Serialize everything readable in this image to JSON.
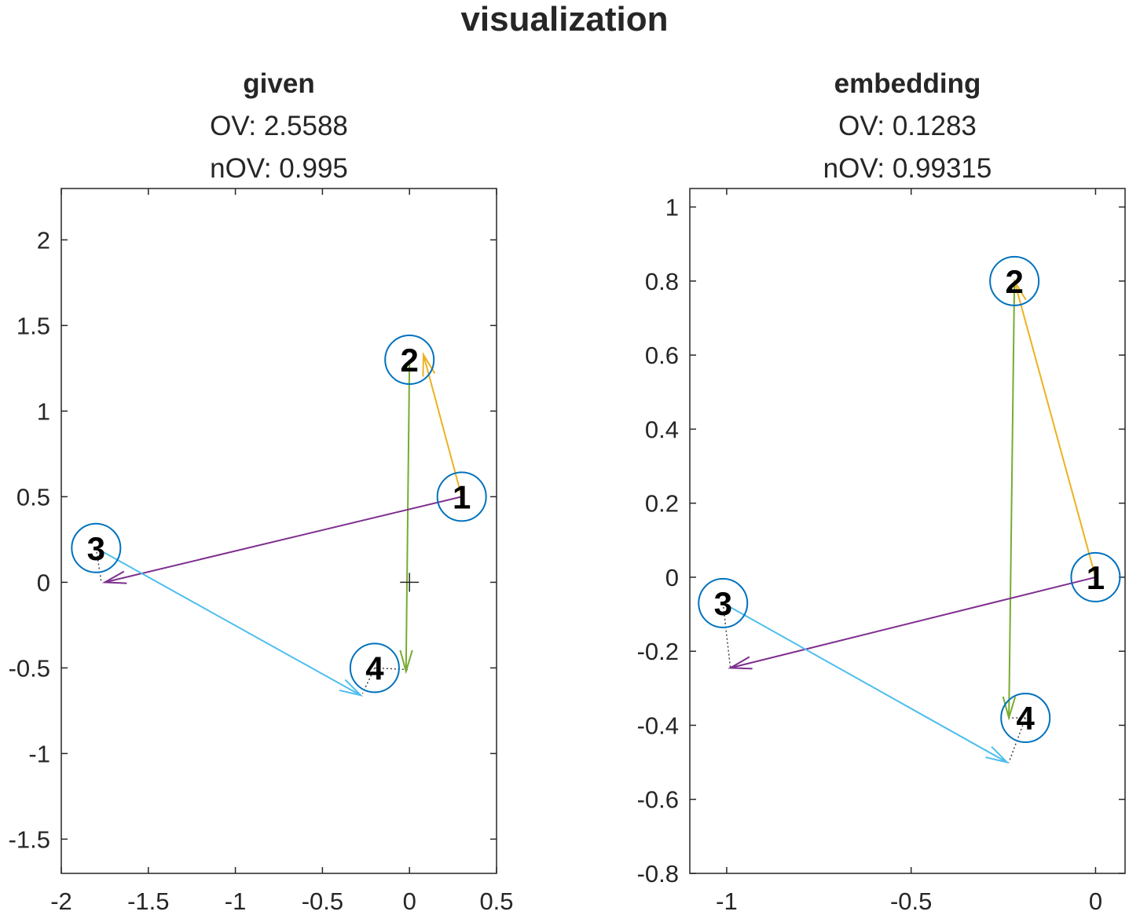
{
  "suptitle": "visualization",
  "colors": {
    "edge_1_2": "#EDB120",
    "edge_2_4": "#77AC30",
    "edge_1_3": "#7E2F8E",
    "edge_3_4": "#4DBEEE",
    "node_circle": "#0072BD",
    "offset_line": "#404040"
  },
  "chart_data": [
    {
      "type": "scatter",
      "title": "given",
      "subtitle_lines": [
        "OV: 2.5588",
        "nOV: 0.995"
      ],
      "xlim": [
        -2,
        0.5
      ],
      "ylim": [
        -1.7,
        2.3
      ],
      "xticks": [
        -2,
        -1.5,
        -1,
        -0.5,
        0,
        0.5
      ],
      "xtick_labels": [
        "-2",
        "-1.5",
        "-1",
        "-0.5",
        "0",
        "0.5"
      ],
      "yticks": [
        -1.5,
        -1,
        -0.5,
        0,
        0.5,
        1,
        1.5,
        2
      ],
      "ytick_labels": [
        "-1.5",
        "-1",
        "-0.5",
        "0",
        "0.5",
        "1",
        "1.5",
        "2"
      ],
      "nodes": [
        {
          "label": "1",
          "x": 0.3,
          "y": 0.5
        },
        {
          "label": "2",
          "x": 0.0,
          "y": 1.3
        },
        {
          "label": "3",
          "x": -1.8,
          "y": 0.2
        },
        {
          "label": "4",
          "x": -0.2,
          "y": -0.5
        }
      ],
      "arrows": [
        {
          "from": "1",
          "to": "2",
          "x0": 0.3,
          "y0": 0.5,
          "x1": 0.08,
          "y1": 1.33,
          "color_key": "edge_1_2"
        },
        {
          "from": "2",
          "to": "4",
          "x0": 0.0,
          "y0": 1.3,
          "x1": -0.02,
          "y1": -0.52,
          "color_key": "edge_2_4"
        },
        {
          "from": "1",
          "to": "3",
          "x0": 0.3,
          "y0": 0.5,
          "x1": -1.75,
          "y1": 0.0,
          "color_key": "edge_1_3"
        },
        {
          "from": "3",
          "to": "4",
          "x0": -1.8,
          "y0": 0.2,
          "x1": -0.28,
          "y1": -0.66,
          "color_key": "edge_3_4"
        }
      ],
      "offsets": [
        {
          "x0": -1.8,
          "y0": 0.2,
          "x1": -1.77,
          "y1": 0.0
        },
        {
          "x0": -0.2,
          "y0": -0.5,
          "x1": -0.27,
          "y1": -0.65
        },
        {
          "x0": -0.2,
          "y0": -0.5,
          "x1": -0.01,
          "y1": -0.51
        }
      ],
      "center_marker": {
        "x": 0.0,
        "y": 0.0
      }
    },
    {
      "type": "scatter",
      "title": "embedding",
      "subtitle_lines": [
        "OV: 0.1283",
        "nOV: 0.99315"
      ],
      "xlim": [
        -1.1,
        0.08
      ],
      "ylim": [
        -0.8,
        1.05
      ],
      "xticks": [
        -1,
        -0.5,
        0
      ],
      "xtick_labels": [
        "-1",
        "-0.5",
        "0"
      ],
      "yticks": [
        -0.8,
        -0.6,
        -0.4,
        -0.2,
        0,
        0.2,
        0.4,
        0.6,
        0.8,
        1
      ],
      "ytick_labels": [
        "-0.8",
        "-0.6",
        "-0.4",
        "-0.2",
        "0",
        "0.2",
        "0.4",
        "0.6",
        "0.8",
        "1"
      ],
      "nodes": [
        {
          "label": "1",
          "x": 0.0,
          "y": 0.0
        },
        {
          "label": "2",
          "x": -0.22,
          "y": 0.8
        },
        {
          "label": "3",
          "x": -1.01,
          "y": -0.07
        },
        {
          "label": "4",
          "x": -0.19,
          "y": -0.38
        }
      ],
      "arrows": [
        {
          "from": "1",
          "to": "2",
          "x0": 0.0,
          "y0": 0.0,
          "x1": -0.22,
          "y1": 0.8,
          "color_key": "edge_1_2"
        },
        {
          "from": "2",
          "to": "4",
          "x0": -0.22,
          "y0": 0.8,
          "x1": -0.235,
          "y1": -0.38,
          "color_key": "edge_2_4"
        },
        {
          "from": "1",
          "to": "3",
          "x0": 0.0,
          "y0": 0.0,
          "x1": -0.99,
          "y1": -0.245,
          "color_key": "edge_1_3"
        },
        {
          "from": "3",
          "to": "4",
          "x0": -1.01,
          "y0": -0.07,
          "x1": -0.24,
          "y1": -0.5,
          "color_key": "edge_3_4"
        }
      ],
      "offsets": [
        {
          "x0": -1.01,
          "y0": -0.07,
          "x1": -0.99,
          "y1": -0.245
        },
        {
          "x0": -0.19,
          "y0": -0.38,
          "x1": -0.235,
          "y1": -0.5
        },
        {
          "x0": -0.19,
          "y0": -0.38,
          "x1": -0.235,
          "y1": -0.38
        }
      ],
      "center_marker": null
    }
  ]
}
